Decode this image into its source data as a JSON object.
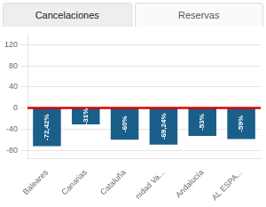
{
  "chart_data": {
    "type": "bar",
    "annotations": [
      "Cancelaciones",
      "Reservas"
    ],
    "categories": [
      "Baleares",
      "Canarias",
      "Cataluña",
      "nidad Va...",
      "Andalucía",
      "AL ESPA..."
    ],
    "values": [
      -72.42,
      -31,
      -60,
      -69.24,
      -53,
      -59
    ],
    "value_labels": [
      "-72,42%",
      "-31%",
      "-60%",
      "-69,24%",
      "-53%",
      "-59%"
    ],
    "data_labels": true,
    "color": "#1a5f8a",
    "ylim": [
      -95,
      140
    ],
    "yticks": [
      -80,
      -40,
      0,
      40,
      80,
      120
    ],
    "grid": true
  }
}
